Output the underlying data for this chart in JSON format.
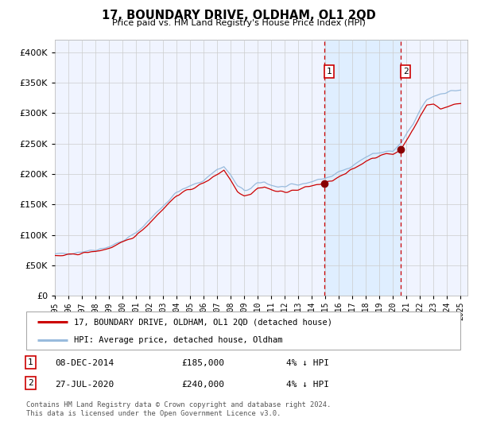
{
  "title": "17, BOUNDARY DRIVE, OLDHAM, OL1 2QD",
  "subtitle": "Price paid vs. HM Land Registry's House Price Index (HPI)",
  "yticks": [
    0,
    50000,
    100000,
    150000,
    200000,
    250000,
    300000,
    350000,
    400000
  ],
  "ylim": [
    0,
    420000
  ],
  "x_start_year": 1995,
  "x_end_year": 2025,
  "xtick_years": [
    1995,
    1996,
    1997,
    1998,
    1999,
    2000,
    2001,
    2002,
    2003,
    2004,
    2005,
    2006,
    2007,
    2008,
    2009,
    2010,
    2011,
    2012,
    2013,
    2014,
    2015,
    2016,
    2017,
    2018,
    2019,
    2020,
    2021,
    2022,
    2023,
    2024,
    2025
  ],
  "marker1_x": 2014.93,
  "marker1_y": 185000,
  "marker2_x": 2020.57,
  "marker2_y": 240000,
  "vline1_x": 2014.93,
  "vline2_x": 2020.57,
  "shade_start": 2014.93,
  "shade_end": 2020.57,
  "line1_color": "#cc0000",
  "line2_color": "#99bbdd",
  "marker_color": "#880000",
  "shade_color": "#ddeeff",
  "vline_color": "#cc0000",
  "grid_color": "#cccccc",
  "bg_color": "#f0f4ff",
  "legend_label1": "17, BOUNDARY DRIVE, OLDHAM, OL1 2QD (detached house)",
  "legend_label2": "HPI: Average price, detached house, Oldham",
  "note1_num": "1",
  "note1_date": "08-DEC-2014",
  "note1_price": "£185,000",
  "note1_hpi": "4% ↓ HPI",
  "note2_num": "2",
  "note2_date": "27-JUL-2020",
  "note2_price": "£240,000",
  "note2_hpi": "4% ↓ HPI",
  "footer": "Contains HM Land Registry data © Crown copyright and database right 2024.\nThis data is licensed under the Open Government Licence v3.0."
}
